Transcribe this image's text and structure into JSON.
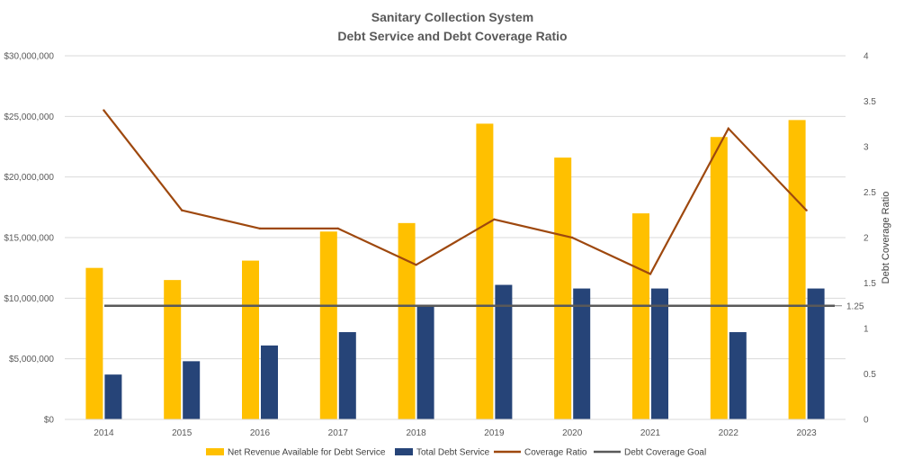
{
  "chart_data": {
    "type": "bar",
    "title_line1": "Sanitary Collection System",
    "title_line2": "Debt Service and Debt Coverage Ratio",
    "categories": [
      "2014",
      "2015",
      "2016",
      "2017",
      "2018",
      "2019",
      "2020",
      "2021",
      "2022",
      "2023"
    ],
    "series": [
      {
        "name": "Net Revenue Available for Debt Service",
        "axis": "left",
        "kind": "bar",
        "color": "#FFC000",
        "values": [
          12500000,
          11500000,
          13100000,
          15500000,
          16200000,
          24400000,
          21600000,
          17000000,
          23300000,
          24700000
        ]
      },
      {
        "name": "Total Debt Service",
        "axis": "left",
        "kind": "bar",
        "color": "#264478",
        "values": [
          3700000,
          4800000,
          6100000,
          7200000,
          9400000,
          11100000,
          10800000,
          10800000,
          7200000,
          10800000
        ]
      },
      {
        "name": "Coverage Ratio",
        "axis": "right",
        "kind": "line",
        "color": "#9E480E",
        "values": [
          3.4,
          2.3,
          2.1,
          2.1,
          1.7,
          2.2,
          2.0,
          1.6,
          3.2,
          2.3
        ]
      },
      {
        "name": "Debt Coverage Goal",
        "axis": "right",
        "kind": "hline",
        "color": "#595959",
        "value": 1.25,
        "label": "1.25"
      }
    ],
    "y_left": {
      "ylim": [
        0,
        30000000
      ],
      "ticks": [
        0,
        5000000,
        10000000,
        15000000,
        20000000,
        25000000,
        30000000
      ],
      "tick_labels": [
        "$0",
        "$5,000,000",
        "$10,000,000",
        "$15,000,000",
        "$20,000,000",
        "$25,000,000",
        "$30,000,000"
      ]
    },
    "y_right": {
      "label": "Debt Coverage Ratio",
      "ylim": [
        0,
        4
      ],
      "ticks": [
        0,
        0.5,
        1,
        1.5,
        2,
        2.5,
        3,
        3.5,
        4
      ],
      "tick_labels": [
        "0",
        "0.5",
        "1",
        "1.5",
        "2",
        "2.5",
        "3",
        "3.5",
        "4"
      ]
    },
    "grid": true,
    "legend_position": "bottom"
  }
}
